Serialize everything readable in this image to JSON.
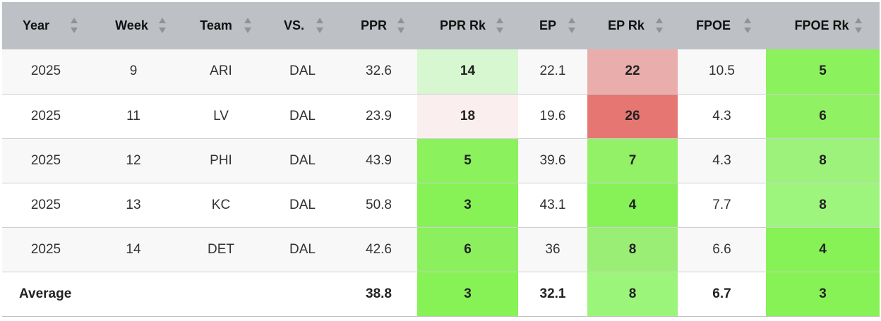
{
  "table": {
    "columns": [
      {
        "label": "Year"
      },
      {
        "label": "Week"
      },
      {
        "label": "Team"
      },
      {
        "label": "VS."
      },
      {
        "label": "PPR"
      },
      {
        "label": "PPR Rk"
      },
      {
        "label": "EP"
      },
      {
        "label": "EP Rk"
      },
      {
        "label": "FPOE"
      },
      {
        "label": "FPOE Rk"
      }
    ],
    "rows": [
      {
        "year": "2025",
        "week": "9",
        "team": "ARI",
        "vs": "DAL",
        "ppr": "32.6",
        "ppr_rk": "14",
        "ep": "22.1",
        "ep_rk": "22",
        "fpoe": "10.5",
        "fpoe_rk": "5"
      },
      {
        "year": "2025",
        "week": "11",
        "team": "LV",
        "vs": "DAL",
        "ppr": "23.9",
        "ppr_rk": "18",
        "ep": "19.6",
        "ep_rk": "26",
        "fpoe": "4.3",
        "fpoe_rk": "6"
      },
      {
        "year": "2025",
        "week": "12",
        "team": "PHI",
        "vs": "DAL",
        "ppr": "43.9",
        "ppr_rk": "5",
        "ep": "39.6",
        "ep_rk": "7",
        "fpoe": "4.3",
        "fpoe_rk": "8"
      },
      {
        "year": "2025",
        "week": "13",
        "team": "KC",
        "vs": "DAL",
        "ppr": "50.8",
        "ppr_rk": "3",
        "ep": "43.1",
        "ep_rk": "4",
        "fpoe": "7.7",
        "fpoe_rk": "8"
      },
      {
        "year": "2025",
        "week": "14",
        "team": "DET",
        "vs": "DAL",
        "ppr": "42.6",
        "ppr_rk": "6",
        "ep": "36",
        "ep_rk": "8",
        "fpoe": "6.6",
        "fpoe_rk": "4"
      }
    ],
    "average": {
      "label": "Average",
      "ppr": "38.8",
      "ppr_rk": "3",
      "ep": "32.1",
      "ep_rk": "8",
      "fpoe": "6.7",
      "fpoe_rk": "3"
    },
    "cell_colors": {
      "r0": {
        "ppr_rk": "#d6f7cf",
        "ep_rk": "#e9aeac",
        "fpoe_rk": "#8bf15c"
      },
      "r1": {
        "ppr_rk": "#fbeeee",
        "ep_rk": "#e57671",
        "fpoe_rk": "#90f163"
      },
      "r2": {
        "ppr_rk": "#8bf15c",
        "ep_rk": "#93f167",
        "fpoe_rk": "#9cf27a"
      },
      "r3": {
        "ppr_rk": "#86f255",
        "ep_rk": "#87f257",
        "fpoe_rk": "#9df57d"
      },
      "r4": {
        "ppr_rk": "#8cf05e",
        "ep_rk": "#9aee76",
        "fpoe_rk": "#86f255"
      },
      "avg": {
        "ppr_rk": "#86f255",
        "ep_rk": "#9bf57a",
        "fpoe_rk": "#86f255"
      }
    }
  }
}
